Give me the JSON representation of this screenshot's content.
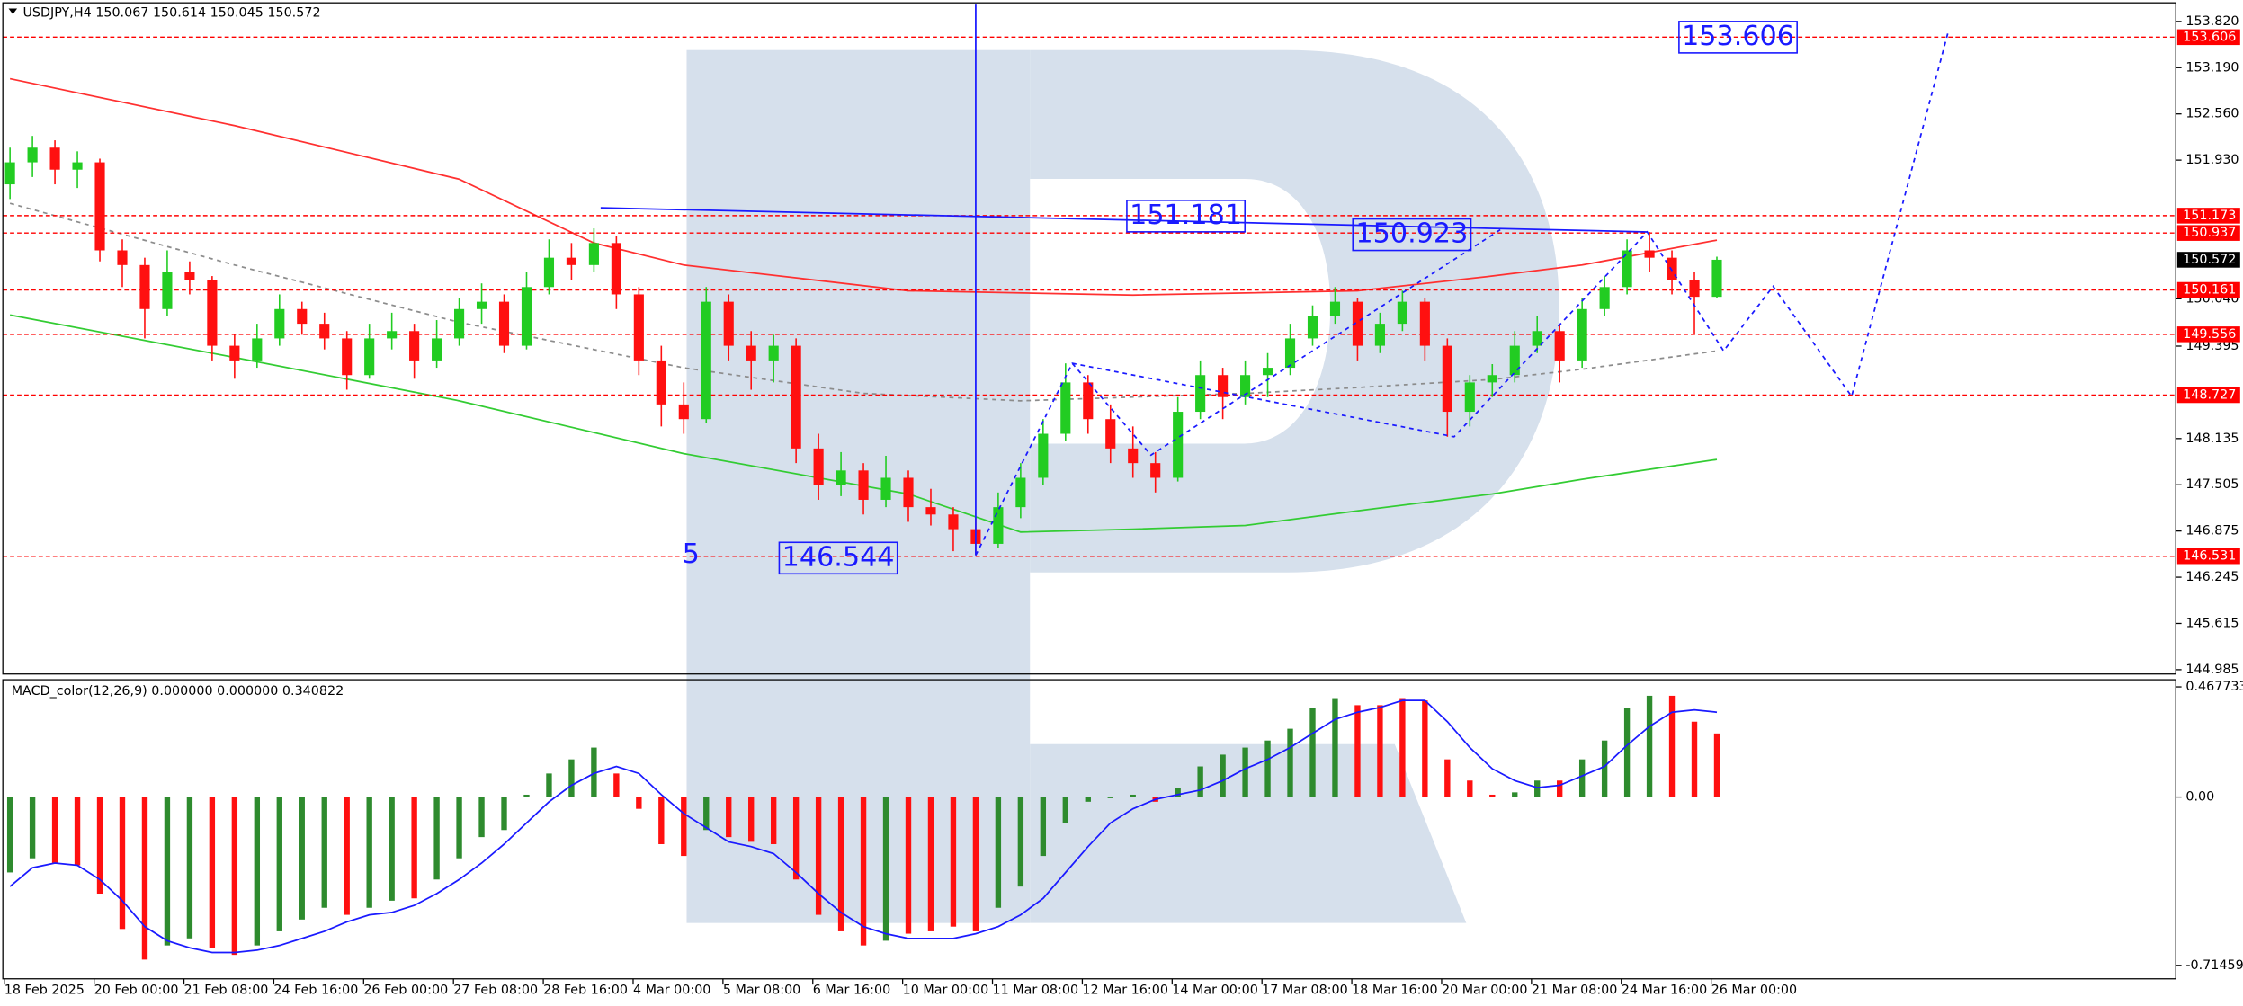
{
  "chart_data": [
    {
      "type": "candlestick",
      "title": "USDJPY,H4  150.067 150.614 150.045 150.572",
      "ylim": [
        144.926,
        154.054
      ],
      "yticks": [
        {
          "value": 153.82,
          "label": "153.820"
        },
        {
          "value": 153.19,
          "label": "153.190"
        },
        {
          "value": 152.56,
          "label": "152.560"
        },
        {
          "value": 151.93,
          "label": "151.930"
        },
        {
          "value": 150.04,
          "label": "150.040"
        },
        149.395,
        148.135,
        147.505,
        146.875,
        146.245,
        145.615,
        144.985
      ],
      "up_color": "#22cc22",
      "down_color": "#ff1010",
      "ohlc": [
        [
          151.6,
          152.1,
          151.4,
          151.9
        ],
        [
          151.9,
          152.26,
          151.7,
          152.1
        ],
        [
          152.1,
          152.2,
          151.6,
          151.8
        ],
        [
          151.8,
          152.05,
          151.55,
          151.9
        ],
        [
          151.9,
          151.95,
          150.55,
          150.7
        ],
        [
          150.7,
          150.85,
          150.2,
          150.5
        ],
        [
          150.5,
          150.6,
          149.5,
          149.9
        ],
        [
          149.9,
          150.7,
          149.8,
          150.4
        ],
        [
          150.4,
          150.55,
          150.1,
          150.3
        ],
        [
          150.3,
          150.35,
          149.2,
          149.4
        ],
        [
          149.4,
          149.55,
          148.95,
          149.2
        ],
        [
          149.2,
          149.7,
          149.1,
          149.5
        ],
        [
          149.5,
          150.1,
          149.4,
          149.9
        ],
        [
          149.9,
          150.0,
          149.55,
          149.7
        ],
        [
          149.7,
          149.85,
          149.35,
          149.5
        ],
        [
          149.5,
          149.6,
          148.8,
          149.0
        ],
        [
          149.0,
          149.7,
          148.95,
          149.5
        ],
        [
          149.5,
          149.85,
          149.35,
          149.6
        ],
        [
          149.6,
          149.7,
          148.95,
          149.2
        ],
        [
          149.2,
          149.75,
          149.1,
          149.5
        ],
        [
          149.5,
          150.05,
          149.4,
          149.9
        ],
        [
          149.9,
          150.25,
          149.7,
          150.0
        ],
        [
          150.0,
          150.1,
          149.3,
          149.4
        ],
        [
          149.4,
          150.4,
          149.35,
          150.2
        ],
        [
          150.2,
          150.85,
          150.1,
          150.6
        ],
        [
          150.6,
          150.8,
          150.3,
          150.5
        ],
        [
          150.5,
          151.0,
          150.4,
          150.8
        ],
        [
          150.8,
          150.9,
          149.9,
          150.1
        ],
        [
          150.1,
          150.2,
          149.0,
          149.2
        ],
        [
          149.2,
          149.4,
          148.3,
          148.6
        ],
        [
          148.6,
          148.9,
          148.2,
          148.4
        ],
        [
          148.4,
          150.2,
          148.35,
          150.0
        ],
        [
          150.0,
          150.1,
          149.2,
          149.4
        ],
        [
          149.4,
          149.6,
          148.8,
          149.2
        ],
        [
          149.2,
          149.55,
          148.9,
          149.4
        ],
        [
          149.4,
          149.5,
          147.8,
          148.0
        ],
        [
          148.0,
          148.2,
          147.3,
          147.5
        ],
        [
          147.5,
          147.95,
          147.35,
          147.7
        ],
        [
          147.7,
          147.8,
          147.1,
          147.3
        ],
        [
          147.3,
          147.9,
          147.2,
          147.6
        ],
        [
          147.6,
          147.7,
          147.0,
          147.2
        ],
        [
          147.2,
          147.45,
          146.95,
          147.1
        ],
        [
          147.1,
          147.2,
          146.6,
          146.9
        ],
        [
          146.9,
          147.05,
          146.544,
          146.7
        ],
        [
          146.7,
          147.4,
          146.65,
          147.2
        ],
        [
          147.2,
          147.8,
          147.05,
          147.6
        ],
        [
          147.6,
          148.4,
          147.5,
          148.2
        ],
        [
          148.2,
          149.16,
          148.1,
          148.9
        ],
        [
          148.9,
          149.0,
          148.2,
          148.4
        ],
        [
          148.4,
          148.6,
          147.8,
          148.0
        ],
        [
          148.0,
          148.3,
          147.6,
          147.8
        ],
        [
          147.8,
          147.95,
          147.4,
          147.6
        ],
        [
          147.6,
          148.7,
          147.55,
          148.5
        ],
        [
          148.5,
          149.2,
          148.4,
          149.0
        ],
        [
          149.0,
          149.1,
          148.4,
          148.7
        ],
        [
          148.7,
          149.2,
          148.6,
          149.0
        ],
        [
          149.0,
          149.3,
          148.7,
          149.1
        ],
        [
          149.1,
          149.7,
          149.0,
          149.5
        ],
        [
          149.5,
          149.95,
          149.4,
          149.8
        ],
        [
          149.8,
          150.2,
          149.7,
          150.0
        ],
        [
          150.0,
          150.05,
          149.2,
          149.4
        ],
        [
          149.4,
          149.85,
          149.3,
          149.7
        ],
        [
          149.7,
          150.15,
          149.6,
          150.0
        ],
        [
          150.0,
          150.05,
          149.2,
          149.4
        ],
        [
          149.4,
          149.5,
          148.16,
          148.5
        ],
        [
          148.5,
          149.0,
          148.3,
          148.9
        ],
        [
          148.9,
          149.15,
          148.7,
          149.0
        ],
        [
          149.0,
          149.6,
          148.9,
          149.4
        ],
        [
          149.4,
          149.8,
          149.3,
          149.6
        ],
        [
          149.6,
          149.7,
          148.9,
          149.2
        ],
        [
          149.2,
          150.05,
          149.1,
          149.9
        ],
        [
          149.9,
          150.35,
          149.8,
          150.2
        ],
        [
          150.2,
          150.85,
          150.1,
          150.7
        ],
        [
          150.7,
          150.95,
          150.4,
          150.6
        ],
        [
          150.6,
          150.7,
          150.1,
          150.3
        ],
        [
          150.3,
          150.4,
          149.55,
          150.067
        ],
        [
          150.067,
          150.614,
          150.045,
          150.572
        ]
      ],
      "xtick_labels": [
        "18 Feb 2025",
        "20 Feb 00:00",
        "21 Feb 08:00",
        "24 Feb 16:00",
        "26 Feb 00:00",
        "27 Feb 08:00",
        "28 Feb 16:00",
        "4 Mar 00:00",
        "5 Mar 08:00",
        "6 Mar 16:00",
        "10 Mar 00:00",
        "11 Mar 08:00",
        "12 Mar 16:00",
        "14 Mar 00:00",
        "17 Mar 08:00",
        "18 Mar 16:00",
        "20 Mar 00:00",
        "21 Mar 08:00",
        "24 Mar 16:00",
        "26 Mar 00:00"
      ],
      "ma_lines": [
        {
          "color": "#ff3030",
          "dash": false,
          "x": [
            0,
            10,
            20,
            26,
            30,
            40,
            50,
            60,
            66,
            70,
            76
          ],
          "values": [
            153.04,
            152.4,
            151.67,
            150.8,
            150.5,
            150.15,
            150.09,
            150.15,
            150.35,
            150.5,
            150.84
          ]
        },
        {
          "color": "#33cc33",
          "dash": false,
          "x": [
            0,
            10,
            20,
            30,
            40,
            45,
            50,
            55,
            60,
            66,
            70,
            76
          ],
          "values": [
            149.82,
            149.24,
            148.65,
            147.93,
            147.38,
            146.86,
            146.9,
            146.95,
            147.15,
            147.38,
            147.58,
            147.85
          ]
        },
        {
          "color": "#8c8c8c",
          "dash": true,
          "x": [
            0,
            10,
            20,
            30,
            38,
            45,
            55,
            60,
            66,
            70,
            76
          ],
          "values": [
            151.34,
            150.5,
            149.72,
            149.1,
            148.75,
            148.65,
            148.75,
            148.83,
            148.94,
            149.08,
            149.33
          ]
        }
      ],
      "overlays": [
        {
          "color": "#1a1aff",
          "dash": true,
          "x": [
            43.0,
            47.3,
            64.3,
            72.9,
            76.3,
            78.5,
            82.0,
            86.3
          ],
          "values": [
            146.544,
            149.16,
            148.16,
            150.95,
            149.33,
            150.21,
            148.71,
            153.68
          ]
        },
        {
          "color": "#1a1aff",
          "dash": true,
          "x": [
            47.3,
            50.8,
            66.4
          ],
          "values": [
            149.16,
            147.91,
            150.99
          ]
        },
        {
          "color": "#1a1aff",
          "dash": false,
          "x": [
            26.3,
            72.9
          ],
          "values": [
            151.28,
            150.95
          ]
        },
        {
          "color": "#1a1aff",
          "dash": false,
          "x": [
            43.0,
            43.0
          ],
          "values": [
            154.05,
            146.544
          ]
        }
      ],
      "levels": [
        153.606,
        151.173,
        150.937,
        150.161,
        149.556,
        148.727,
        146.531
      ],
      "level_color": "#ff0000",
      "last_price": 150.572,
      "annotations": [
        153.606,
        151.181,
        150.923,
        146.544,
        5
      ]
    },
    {
      "type": "macd",
      "title": "MACD_color(12,26,9) 0.000000 0.000000 0.340822",
      "ylim": [
        -0.7716,
        0.4981
      ],
      "yticks": [
        0.467733,
        {
          "value": 0,
          "label": "0.00"
        },
        -0.71459
      ],
      "values": [
        -0.32,
        -0.26,
        -0.28,
        -0.29,
        -0.41,
        -0.56,
        -0.69,
        -0.63,
        -0.6,
        -0.64,
        -0.67,
        -0.63,
        -0.57,
        -0.52,
        -0.47,
        -0.5,
        -0.47,
        -0.44,
        -0.43,
        -0.35,
        -0.26,
        -0.17,
        -0.14,
        0.01,
        0.1,
        0.16,
        0.21,
        0.1,
        -0.05,
        -0.2,
        -0.25,
        -0.14,
        -0.17,
        -0.19,
        -0.2,
        -0.35,
        -0.5,
        -0.57,
        -0.63,
        -0.61,
        -0.58,
        -0.57,
        -0.55,
        -0.57,
        -0.47,
        -0.38,
        -0.25,
        -0.11,
        -0.02,
        -0.005,
        0.01,
        -0.02,
        0.04,
        0.13,
        0.18,
        0.21,
        0.24,
        0.29,
        0.38,
        0.42,
        0.39,
        0.39,
        0.42,
        0.41,
        0.16,
        0.07,
        0.01,
        0.02,
        0.07,
        0.07,
        0.16,
        0.24,
        0.38,
        0.43,
        0.43,
        0.32,
        0.27
      ],
      "bar_colors": [
        "#2e8b2e",
        "#2e8b2e",
        "#ff1010",
        "#ff1010",
        "#ff1010",
        "#ff1010",
        "#ff1010",
        "#2e8b2e",
        "#2e8b2e",
        "#ff1010",
        "#ff1010",
        "#2e8b2e",
        "#2e8b2e",
        "#2e8b2e",
        "#2e8b2e",
        "#ff1010",
        "#2e8b2e",
        "#2e8b2e",
        "#ff1010",
        "#2e8b2e",
        "#2e8b2e",
        "#2e8b2e",
        "#2e8b2e",
        "#2e8b2e",
        "#2e8b2e",
        "#2e8b2e",
        "#2e8b2e",
        "#ff1010",
        "#ff1010",
        "#ff1010",
        "#ff1010",
        "#2e8b2e",
        "#ff1010",
        "#ff1010",
        "#ff1010",
        "#ff1010",
        "#ff1010",
        "#ff1010",
        "#ff1010",
        "#2e8b2e",
        "#ff1010",
        "#ff1010",
        "#ff1010",
        "#ff1010",
        "#2e8b2e",
        "#2e8b2e",
        "#2e8b2e",
        "#2e8b2e",
        "#2e8b2e",
        "#2e8b2e",
        "#2e8b2e",
        "#ff1010",
        "#2e8b2e",
        "#2e8b2e",
        "#2e8b2e",
        "#2e8b2e",
        "#2e8b2e",
        "#2e8b2e",
        "#2e8b2e",
        "#2e8b2e",
        "#ff1010",
        "#ff1010",
        "#ff1010",
        "#ff1010",
        "#ff1010",
        "#ff1010",
        "#ff1010",
        "#2e8b2e",
        "#2e8b2e",
        "#ff1010",
        "#2e8b2e",
        "#2e8b2e",
        "#2e8b2e",
        "#2e8b2e",
        "#ff1010",
        "#ff1010",
        "#ff1010"
      ],
      "signal": {
        "color": "#1a1aff",
        "values": [
          -0.38,
          -0.3,
          -0.28,
          -0.29,
          -0.35,
          -0.44,
          -0.55,
          -0.61,
          -0.64,
          -0.66,
          -0.66,
          -0.65,
          -0.63,
          -0.6,
          -0.57,
          -0.53,
          -0.5,
          -0.49,
          -0.46,
          -0.41,
          -0.35,
          -0.28,
          -0.2,
          -0.11,
          -0.02,
          0.05,
          0.1,
          0.13,
          0.1,
          0.01,
          -0.07,
          -0.13,
          -0.19,
          -0.21,
          -0.24,
          -0.32,
          -0.41,
          -0.49,
          -0.55,
          -0.58,
          -0.6,
          -0.6,
          -0.6,
          -0.58,
          -0.55,
          -0.5,
          -0.43,
          -0.32,
          -0.21,
          -0.11,
          -0.05,
          -0.01,
          0.01,
          0.03,
          0.07,
          0.12,
          0.16,
          0.21,
          0.27,
          0.33,
          0.36,
          0.38,
          0.41,
          0.41,
          0.32,
          0.21,
          0.12,
          0.07,
          0.04,
          0.05,
          0.09,
          0.13,
          0.22,
          0.3,
          0.36,
          0.37,
          0.36
        ]
      }
    }
  ]
}
